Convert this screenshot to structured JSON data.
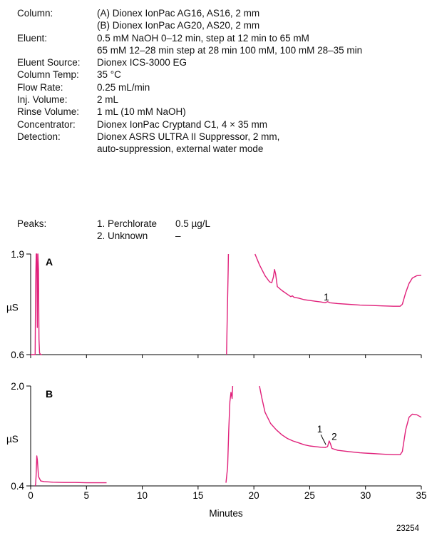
{
  "conditions": [
    {
      "label": "Column:",
      "values": [
        "(A) Dionex IonPac AG16, AS16, 2 mm",
        "(B) Dionex IonPac AG20, AS20, 2 mm"
      ]
    },
    {
      "label": "Eluent:",
      "values": [
        "0.5 mM NaOH 0–12 min, step at 12 min to 65 mM",
        "65 mM 12–28 min step at 28 min 100 mM, 100 mM 28–35 min"
      ]
    },
    {
      "label": "Eluent Source:",
      "values": [
        "Dionex ICS-3000 EG"
      ]
    },
    {
      "label": "Column Temp:",
      "values": [
        "35 °C"
      ]
    },
    {
      "label": "Flow Rate:",
      "values": [
        "0.25 mL/min"
      ]
    },
    {
      "label": "Inj. Volume:",
      "values": [
        "2 mL"
      ]
    },
    {
      "label": "Rinse Volume:",
      "values": [
        "1 mL (10 mM NaOH)"
      ]
    },
    {
      "label": "Concentrator:",
      "values": [
        "Dionex IonPac Cryptand C1, 4 × 35 mm"
      ]
    },
    {
      "label": "Detection:",
      "values": [
        "Dionex ASRS ULTRA II Suppressor, 2 mm,",
        "auto-suppression, external water mode"
      ]
    }
  ],
  "peaks": {
    "label": "Peaks:",
    "items": [
      {
        "name": "1. Perchlorate",
        "value": "0.5 µg/L"
      },
      {
        "name": "2. Unknown",
        "value": "–"
      }
    ]
  },
  "figure_id": "23254",
  "chart_data": {
    "type": "line",
    "color": "#e0207a",
    "xlabel": "Minutes",
    "xlim": [
      0,
      35
    ],
    "xticks": [
      0,
      5,
      10,
      15,
      20,
      25,
      30,
      35
    ],
    "panels": [
      {
        "label": "A",
        "ylabel": "µS",
        "ylim": [
          0.6,
          1.9
        ],
        "ytick_labels": [
          "1.9",
          "0.6"
        ],
        "annotations": [
          {
            "text": "1",
            "x": 26.5,
            "y": 1.3
          }
        ],
        "segments": [
          [
            [
              0,
              0.6
            ],
            [
              0.4,
              0.6
            ],
            [
              0.45,
              1.5
            ],
            [
              0.5,
              1.9
            ],
            [
              0.55,
              1.9
            ],
            [
              0.6,
              0.95
            ],
            [
              0.65,
              1.9
            ],
            [
              0.7,
              1.7
            ],
            [
              0.75,
              0.8
            ],
            [
              0.8,
              0.62
            ],
            [
              0.9,
              0.6
            ],
            [
              1.0,
              0.6
            ]
          ],
          [
            [
              17.55,
              0.6
            ],
            [
              17.6,
              1.0
            ],
            [
              17.7,
              1.7
            ],
            [
              17.72,
              1.9
            ]
          ],
          [
            [
              20.1,
              1.9
            ],
            [
              20.5,
              1.76
            ],
            [
              21,
              1.62
            ],
            [
              21.4,
              1.54
            ],
            [
              21.6,
              1.53
            ],
            [
              21.75,
              1.6
            ],
            [
              21.85,
              1.7
            ],
            [
              21.95,
              1.64
            ],
            [
              22.1,
              1.48
            ],
            [
              22.5,
              1.43
            ],
            [
              23,
              1.38
            ],
            [
              23.3,
              1.35
            ],
            [
              23.45,
              1.36
            ],
            [
              23.6,
              1.34
            ],
            [
              24,
              1.33
            ],
            [
              24.5,
              1.31
            ],
            [
              25,
              1.3
            ],
            [
              25.5,
              1.29
            ],
            [
              26,
              1.28
            ],
            [
              26.4,
              1.27
            ],
            [
              26.6,
              1.285
            ],
            [
              26.8,
              1.27
            ],
            [
              27.5,
              1.26
            ],
            [
              28.5,
              1.25
            ],
            [
              29.5,
              1.24
            ],
            [
              30.5,
              1.235
            ],
            [
              31.5,
              1.23
            ],
            [
              32.5,
              1.225
            ],
            [
              33.1,
              1.225
            ],
            [
              33.3,
              1.25
            ],
            [
              33.6,
              1.4
            ],
            [
              33.9,
              1.52
            ],
            [
              34.2,
              1.59
            ],
            [
              34.6,
              1.62
            ],
            [
              35,
              1.625
            ]
          ]
        ]
      },
      {
        "label": "B",
        "ylabel": "µS",
        "ylim": [
          0.4,
          2.0
        ],
        "ytick_labels": [
          "2.0",
          "0.4"
        ],
        "annotations": [
          {
            "text": "1",
            "x": 25.9,
            "y": 1.26
          },
          {
            "text": "2",
            "x": 27.2,
            "y": 1.14
          }
        ],
        "segments": [
          [
            [
              0.4,
              0.4
            ],
            [
              0.45,
              0.43
            ],
            [
              0.5,
              0.6
            ],
            [
              0.55,
              0.88
            ],
            [
              0.6,
              0.82
            ],
            [
              0.7,
              0.55
            ],
            [
              0.9,
              0.48
            ],
            [
              1.2,
              0.47
            ],
            [
              2,
              0.46
            ],
            [
              3,
              0.455
            ],
            [
              4,
              0.455
            ],
            [
              5,
              0.45
            ],
            [
              6,
              0.45
            ],
            [
              6.8,
              0.45
            ]
          ],
          [
            [
              17.5,
              0.45
            ],
            [
              17.65,
              0.7
            ],
            [
              17.75,
              1.3
            ],
            [
              17.85,
              1.75
            ],
            [
              17.95,
              1.9
            ],
            [
              18.05,
              1.8
            ],
            [
              18.1,
              2.0
            ]
          ],
          [
            [
              20.5,
              2.0
            ],
            [
              20.7,
              1.82
            ],
            [
              21,
              1.58
            ],
            [
              21.5,
              1.4
            ],
            [
              22,
              1.3
            ],
            [
              22.5,
              1.22
            ],
            [
              23,
              1.16
            ],
            [
              23.5,
              1.12
            ],
            [
              24,
              1.09
            ],
            [
              24.5,
              1.06
            ],
            [
              25,
              1.04
            ],
            [
              25.5,
              1.03
            ],
            [
              26,
              1.02
            ],
            [
              26.4,
              1.015
            ],
            [
              26.6,
              1.03
            ],
            [
              26.75,
              1.12
            ],
            [
              26.85,
              1.08
            ],
            [
              27,
              1.0
            ],
            [
              27.5,
              0.97
            ],
            [
              28.5,
              0.95
            ],
            [
              29.5,
              0.93
            ],
            [
              30.5,
              0.92
            ],
            [
              31.5,
              0.91
            ],
            [
              32.5,
              0.9
            ],
            [
              33.1,
              0.9
            ],
            [
              33.3,
              0.95
            ],
            [
              33.6,
              1.3
            ],
            [
              33.9,
              1.5
            ],
            [
              34.2,
              1.55
            ],
            [
              34.6,
              1.54
            ],
            [
              35,
              1.5
            ]
          ]
        ]
      }
    ]
  }
}
